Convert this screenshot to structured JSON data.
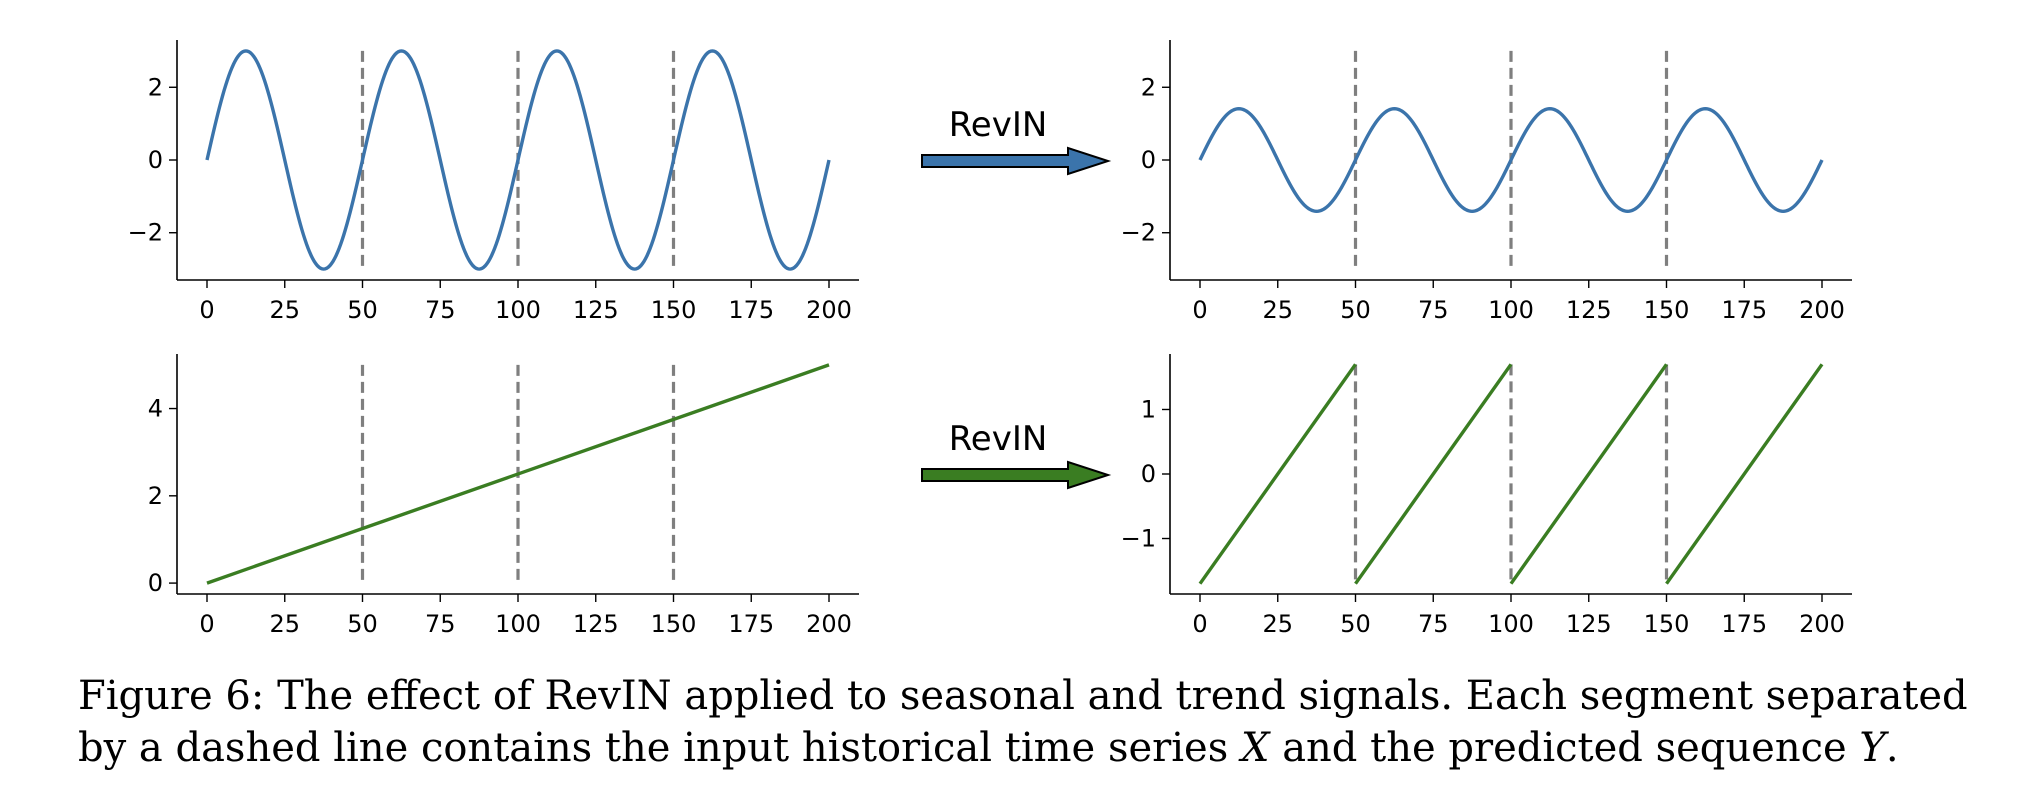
{
  "arrow_label": "RevIN",
  "colors": {
    "blue": "#3b74ab",
    "green": "#3a7d22",
    "dashed": "#7f7f7f",
    "axis": "#000000"
  },
  "caption": {
    "prefix": "Figure 6: The effect of RevIN applied to seasonal and trend signals. Each segment separated by a dashed line contains the input historical time series",
    "var_x": "X",
    "middle": "and the predicted sequence",
    "var_y": "Y",
    "suffix": "."
  },
  "chart_data": [
    {
      "type": "line",
      "id": "seasonal-original",
      "xlim": [
        0,
        200
      ],
      "ylim": [
        -3.3,
        3.3
      ],
      "xticks": [
        0,
        25,
        50,
        75,
        100,
        125,
        150,
        175,
        200
      ],
      "yticks": [
        -2,
        0,
        2
      ],
      "ytick_labels": [
        "−2",
        "0",
        "2"
      ],
      "series": [
        {
          "color": "blue",
          "function": "sine",
          "amplitude": 3,
          "period": 50,
          "x_range": [
            0,
            200
          ]
        }
      ],
      "segment_lines": {
        "x": [
          50,
          100,
          150
        ],
        "ymin": -3,
        "ymax": 3
      }
    },
    {
      "type": "line",
      "id": "seasonal-revin",
      "xlim": [
        0,
        200
      ],
      "ylim": [
        -3.3,
        3.3
      ],
      "xticks": [
        0,
        25,
        50,
        75,
        100,
        125,
        150,
        175,
        200
      ],
      "yticks": [
        -2,
        0,
        2
      ],
      "ytick_labels": [
        "−2",
        "0",
        "2"
      ],
      "series": [
        {
          "color": "blue",
          "function": "sine",
          "amplitude": 1.41,
          "period": 50,
          "x_range": [
            0,
            200
          ]
        }
      ],
      "segment_lines": {
        "x": [
          50,
          100,
          150
        ],
        "ymin": -3,
        "ymax": 3
      }
    },
    {
      "type": "line",
      "id": "trend-original",
      "xlim": [
        0,
        200
      ],
      "ylim": [
        -0.25,
        5.25
      ],
      "xticks": [
        0,
        25,
        50,
        75,
        100,
        125,
        150,
        175,
        200
      ],
      "yticks": [
        0,
        2,
        4
      ],
      "ytick_labels": [
        "0",
        "2",
        "4"
      ],
      "series": [
        {
          "color": "green",
          "function": "linear",
          "points": [
            [
              0,
              0
            ],
            [
              200,
              5
            ]
          ]
        }
      ],
      "segment_lines": {
        "x": [
          50,
          100,
          150
        ],
        "ymin": 0,
        "ymax": 5
      }
    },
    {
      "type": "line",
      "id": "trend-revin",
      "xlim": [
        0,
        200
      ],
      "ylim": [
        -1.86,
        1.86
      ],
      "xticks": [
        0,
        25,
        50,
        75,
        100,
        125,
        150,
        175,
        200
      ],
      "yticks": [
        -1,
        0,
        1
      ],
      "ytick_labels": [
        "−1",
        "0",
        "1"
      ],
      "series": [
        {
          "color": "green",
          "function": "segments",
          "segments": [
            [
              [
                0,
                -1.7
              ],
              [
                50,
                1.7
              ]
            ],
            [
              [
                50,
                -1.7
              ],
              [
                100,
                1.7
              ]
            ],
            [
              [
                100,
                -1.7
              ],
              [
                150,
                1.7
              ]
            ],
            [
              [
                150,
                -1.7
              ],
              [
                200,
                1.7
              ]
            ]
          ]
        }
      ],
      "segment_lines": {
        "x": [
          50,
          100,
          150
        ],
        "ymin": -1.7,
        "ymax": 1.7
      }
    }
  ]
}
